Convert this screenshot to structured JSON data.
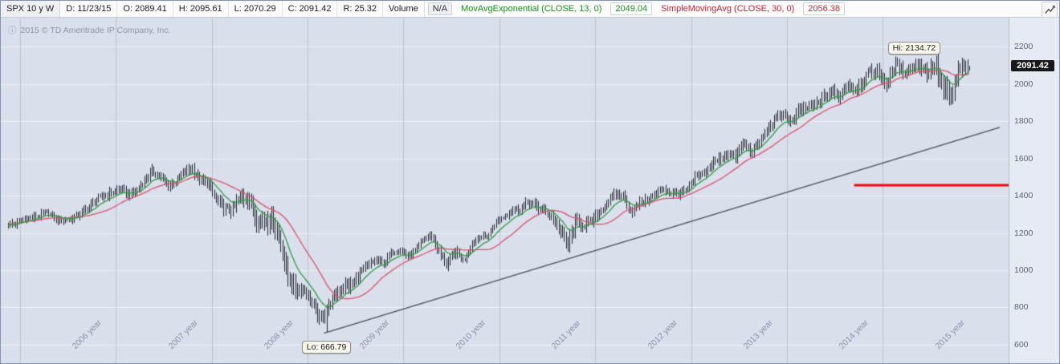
{
  "header": {
    "symbol": "SPX 10 y W",
    "date": "D: 11/23/15",
    "open": "O: 2089.41",
    "high": "H: 2095.61",
    "low": "L: 2070.29",
    "close": "C: 2091.42",
    "range": "R: 25.32",
    "volume_label": "Volume",
    "volume_value": "N/A",
    "ema_label": "MovAvgExponential (CLOSE, 13, 0)",
    "ema_value": "2049.04",
    "sma_label": "SimpleMovingAvg (CLOSE, 30, 0)",
    "sma_value": "2056.38"
  },
  "chart": {
    "copyright": "2015 © TD Ameritrade IP Company, Inc.",
    "info_icon": "ⓘ",
    "hi_label": "Hi: 2134.72",
    "lo_label": "Lo: 666.79",
    "price_bubble": "2091.42",
    "x_labels": [
      "2006 year",
      "2007 year",
      "2008 year",
      "2009 year",
      "2010 year",
      "2011 year",
      "2012 year",
      "2013 year",
      "2014 year",
      "2015 year"
    ],
    "colors": {
      "plot_bg": "#d9dfeb",
      "axis_bg": "#e6eaf3",
      "bar": "#25282e",
      "grid_h": "rgba(255,255,255,0.55)",
      "grid_v": "rgba(128,140,168,0.35)",
      "bubble_bg": "#17181c",
      "header_green": "#169116",
      "header_red": "#c52233"
    }
  },
  "chart_data": {
    "type": "bar",
    "subtype": "weekly-ohlc-bars",
    "title": "SPX 10 y W",
    "symbol": "SPX",
    "timeframe": "10 year weekly",
    "xlim": [
      2005.8,
      2016.32
    ],
    "ylim": [
      501,
      2355
    ],
    "y_ticks": [
      600,
      800,
      1000,
      1200,
      1400,
      1600,
      1800,
      2000,
      2200
    ],
    "grid_years": [
      2006,
      2007,
      2008,
      2009,
      2010,
      2011,
      2012,
      2013,
      2014,
      2015
    ],
    "monthly": {
      "start_time": 2005.875,
      "step_years": 0.0833333,
      "closes": [
        1249,
        1248,
        1280,
        1281,
        1295,
        1311,
        1270,
        1270,
        1277,
        1304,
        1336,
        1378,
        1401,
        1418,
        1438,
        1407,
        1421,
        1482,
        1531,
        1503,
        1455,
        1474,
        1527,
        1549,
        1481,
        1468,
        1378,
        1331,
        1323,
        1386,
        1400,
        1280,
        1267,
        1283,
        1166,
        969,
        896,
        903,
        826,
        735,
        798,
        873,
        919,
        919,
        987,
        1021,
        1057,
        1036,
        1096,
        1115,
        1074,
        1104,
        1169,
        1187,
        1089,
        1031,
        1102,
        1049,
        1141,
        1183,
        1181,
        1258,
        1286,
        1327,
        1326,
        1364,
        1345,
        1321,
        1292,
        1219,
        1131,
        1253,
        1247,
        1258,
        1312,
        1366,
        1408,
        1398,
        1310,
        1362,
        1379,
        1407,
        1441,
        1412,
        1416,
        1426,
        1498,
        1515,
        1569,
        1598,
        1631,
        1606,
        1686,
        1633,
        1682,
        1757,
        1806,
        1848,
        1783,
        1859,
        1872,
        1884,
        1924,
        1960,
        1931,
        2003,
        1972,
        2018,
        2068,
        2059,
        1995,
        2105,
        2068,
        2086,
        2107,
        2063,
        2104,
        1972,
        1920,
        2079,
        2091.42
      ]
    },
    "bars": {
      "count": 523,
      "first_time": 2005.875,
      "last_time": 2015.9,
      "last_open": 2089.41,
      "last_high": 2095.61,
      "last_low": 2070.29,
      "last_close": 2091.42
    },
    "annotations": {
      "high": {
        "time": 2015.37,
        "price": 2134.72,
        "label": "Hi: 2134.72"
      },
      "low": {
        "time": 2009.19,
        "price": 666.79,
        "label": "Lo: 666.79"
      }
    },
    "overlays": [
      {
        "name": "MovAvgExponential",
        "input": "CLOSE",
        "period": 13,
        "value": 2049.04,
        "color": "#2f9e3f"
      },
      {
        "name": "SimpleMovingAvg",
        "input": "CLOSE",
        "period": 30,
        "value": 2056.38,
        "color": "#e0506c"
      }
    ],
    "drawings": [
      {
        "type": "trendline",
        "t1": 2009.17,
        "p1": 662,
        "t2": 2016.22,
        "p2": 1766,
        "color": "#4a4f58",
        "width": 1.4
      },
      {
        "type": "hline",
        "price": 1455,
        "t1": 2014.7,
        "t2": 2016.32,
        "color": "#ff0000",
        "width": 3
      }
    ]
  }
}
